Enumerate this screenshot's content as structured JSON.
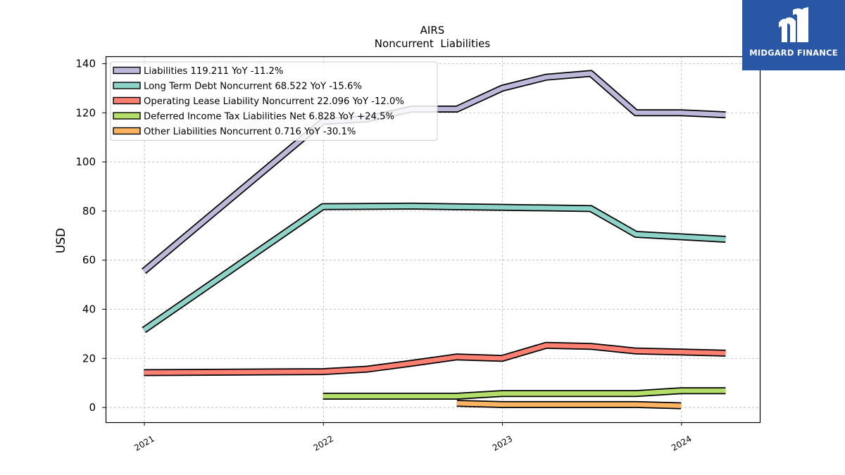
{
  "brand": {
    "name": "MIDGARD FINANCE",
    "bg_color": "#2a56a6",
    "icon": "midgard-logo-icon"
  },
  "chart_data": {
    "type": "line",
    "title": "AIRS",
    "subtitle": "Noncurrent  Liabilities",
    "xlabel": "",
    "ylabel": "USD",
    "x_ticks": [
      "2021",
      "2022",
      "2023",
      "2024"
    ],
    "y_ticks": [
      0,
      20,
      40,
      60,
      80,
      100,
      120,
      140
    ],
    "xlim": [
      "2020-10-14",
      "2024-06-10"
    ],
    "ylim": [
      -6,
      143
    ],
    "grid": true,
    "legend_position": "top-left",
    "series": [
      {
        "name": "Liabilities  119.211 YoY -11.2%",
        "color": "#bcb8d9",
        "points": [
          [
            "2020-12-31",
            55.5
          ],
          [
            "2021-12-31",
            116.5
          ],
          [
            "2022-03-31",
            117.5
          ],
          [
            "2022-06-30",
            121.5
          ],
          [
            "2022-09-30",
            121.5
          ],
          [
            "2022-12-31",
            130.0
          ],
          [
            "2023-03-31",
            134.5
          ],
          [
            "2023-06-30",
            136.0
          ],
          [
            "2023-09-30",
            120.0
          ],
          [
            "2023-12-31",
            120.0
          ],
          [
            "2024-03-31",
            119.2
          ]
        ]
      },
      {
        "name": "Long Term Debt Noncurrent  68.522 YoY -15.6%",
        "color": "#8dd3c7",
        "points": [
          [
            "2020-12-31",
            31.5
          ],
          [
            "2021-12-31",
            81.8
          ],
          [
            "2022-06-30",
            82.0
          ],
          [
            "2022-12-31",
            81.5
          ],
          [
            "2023-06-30",
            81.0
          ],
          [
            "2023-09-30",
            70.5
          ],
          [
            "2024-03-31",
            68.5
          ]
        ]
      },
      {
        "name": "Operating Lease Liability Noncurrent  22.096 YoY -12.0%",
        "color": "#fb8072",
        "points": [
          [
            "2020-12-31",
            14.2
          ],
          [
            "2021-12-31",
            14.6
          ],
          [
            "2022-03-31",
            15.6
          ],
          [
            "2022-06-30",
            18.0
          ],
          [
            "2022-09-30",
            20.6
          ],
          [
            "2022-12-31",
            20.0
          ],
          [
            "2023-03-31",
            25.3
          ],
          [
            "2023-06-30",
            24.9
          ],
          [
            "2023-09-30",
            23.0
          ],
          [
            "2023-12-31",
            22.6
          ],
          [
            "2024-03-31",
            22.1
          ]
        ]
      },
      {
        "name": "Deferred Income Tax Liabilities Net  6.828 YoY +24.5%",
        "color": "#b3de69",
        "points": [
          [
            "2021-12-31",
            4.6
          ],
          [
            "2022-09-30",
            4.6
          ],
          [
            "2022-12-31",
            5.7
          ],
          [
            "2023-09-30",
            5.7
          ],
          [
            "2023-12-31",
            6.8
          ],
          [
            "2024-03-31",
            6.8
          ]
        ]
      },
      {
        "name": "Other Liabilities Noncurrent  0.716 YoY -30.1%",
        "color": "#fdb462",
        "points": [
          [
            "2022-09-30",
            1.7
          ],
          [
            "2022-12-31",
            1.2
          ],
          [
            "2023-09-30",
            1.2
          ],
          [
            "2023-12-31",
            0.7
          ]
        ]
      }
    ]
  }
}
